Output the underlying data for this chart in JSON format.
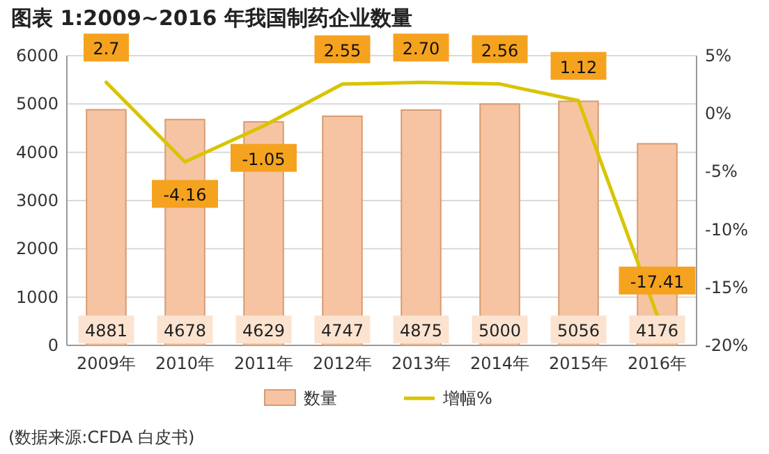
{
  "chart_data": {
    "type": "bar",
    "title": "图表 1:2009~2016 年我国制药企业数量",
    "categories": [
      "2009年",
      "2010年",
      "2011年",
      "2012年",
      "2013年",
      "2014年",
      "2015年",
      "2016年"
    ],
    "series": [
      {
        "name": "数量",
        "type": "bar",
        "color": "#f6c4a2",
        "values": [
          4881,
          4678,
          4629,
          4747,
          4875,
          5000,
          5056,
          4176
        ],
        "value_labels": [
          "4881",
          "4678",
          "4629",
          "4747",
          "4875",
          "5000",
          "5056",
          "4176"
        ]
      },
      {
        "name": "增幅%",
        "type": "line",
        "axis": "y2",
        "color": "#d9c400",
        "values": [
          2.7,
          -4.16,
          -1.05,
          2.55,
          2.7,
          2.56,
          1.12,
          -17.41
        ],
        "value_labels": [
          "2.7",
          "-4.16",
          "-1.05",
          "2.55",
          "2.70",
          "2.56",
          "1.12",
          "-17.41"
        ]
      }
    ],
    "ylim": [
      0,
      6000
    ],
    "yticks": [
      0,
      1000,
      2000,
      3000,
      4000,
      5000,
      6000
    ],
    "y2lim": [
      -20,
      5
    ],
    "y2ticks": [
      {
        "value": 5,
        "label": "5%"
      },
      {
        "value": 0,
        "label": "0%"
      },
      {
        "value": -5,
        "label": "-5%"
      },
      {
        "value": -10,
        "label": "-10%"
      },
      {
        "value": -15,
        "label": "-15%"
      },
      {
        "value": -20,
        "label": "-20%"
      }
    ],
    "grid": "y",
    "legend": "bottom",
    "marker": "none",
    "annotations": [
      "(数据来源:CFDA 白皮书)"
    ]
  }
}
